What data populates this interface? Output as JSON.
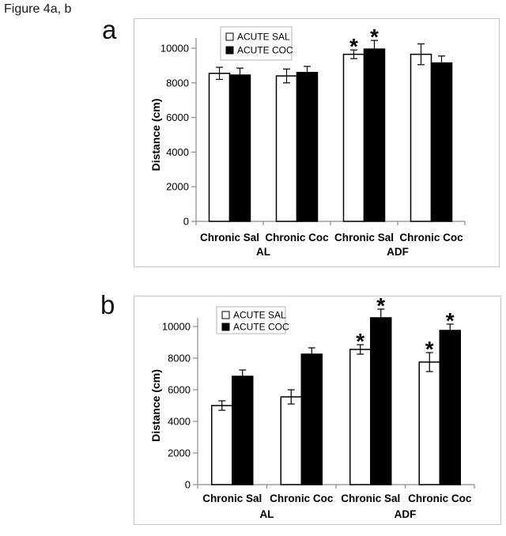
{
  "figure_label": "Figure 4a, b",
  "sig_marker": "*",
  "colors": {
    "axis": "#8c8c8c",
    "panel_border": "#c6c6c6",
    "legend_border": "#b5b5b5",
    "bar_sal_fill": "#ffffff",
    "bar_coc_fill": "#000000",
    "text": "#000000"
  },
  "chart_data": [
    {
      "type": "bar",
      "panel_label": "a",
      "title": "",
      "xlabel": "",
      "ylabel": "Distance (cm)",
      "ylim": [
        0,
        10600
      ],
      "yticks": [
        0,
        2000,
        4000,
        6000,
        8000,
        10000
      ],
      "grid": false,
      "legend_position": "top-left-inside",
      "categories": [
        "Chronic Sal",
        "Chronic Coc",
        "Chronic Sal",
        "Chronic Coc"
      ],
      "group_labels": [
        {
          "label": "AL",
          "between": [
            0,
            1
          ]
        },
        {
          "label": "ADF",
          "between": [
            2,
            3
          ]
        }
      ],
      "series": [
        {
          "name": "ACUTE SAL",
          "fill": "#ffffff",
          "values": [
            8550,
            8400,
            9650,
            9650
          ],
          "errors": [
            350,
            400,
            250,
            600
          ],
          "significant": [
            false,
            false,
            true,
            false
          ]
        },
        {
          "name": "ACUTE COC",
          "fill": "#000000",
          "values": [
            8450,
            8600,
            9950,
            9150
          ],
          "errors": [
            400,
            350,
            500,
            400
          ],
          "significant": [
            false,
            false,
            true,
            false
          ]
        }
      ]
    },
    {
      "type": "bar",
      "panel_label": "b",
      "title": "",
      "xlabel": "",
      "ylabel": "Distance (cm)",
      "ylim": [
        0,
        11200
      ],
      "yticks": [
        0,
        2000,
        4000,
        6000,
        8000,
        10000
      ],
      "grid": false,
      "legend_position": "top-left-inside",
      "categories": [
        "Chronic Sal",
        "Chronic Coc",
        "Chronic Sal",
        "Chronic Coc"
      ],
      "group_labels": [
        {
          "label": "AL",
          "between": [
            0,
            1
          ]
        },
        {
          "label": "ADF",
          "between": [
            2,
            3
          ]
        }
      ],
      "series": [
        {
          "name": "ACUTE SAL",
          "fill": "#ffffff",
          "values": [
            5000,
            5550,
            8550,
            7750
          ],
          "errors": [
            300,
            450,
            300,
            600
          ],
          "significant": [
            false,
            false,
            true,
            true
          ]
        },
        {
          "name": "ACUTE COC",
          "fill": "#000000",
          "values": [
            6850,
            8250,
            10550,
            9750
          ],
          "errors": [
            400,
            400,
            550,
            400
          ],
          "significant": [
            false,
            false,
            true,
            true
          ]
        }
      ]
    }
  ]
}
